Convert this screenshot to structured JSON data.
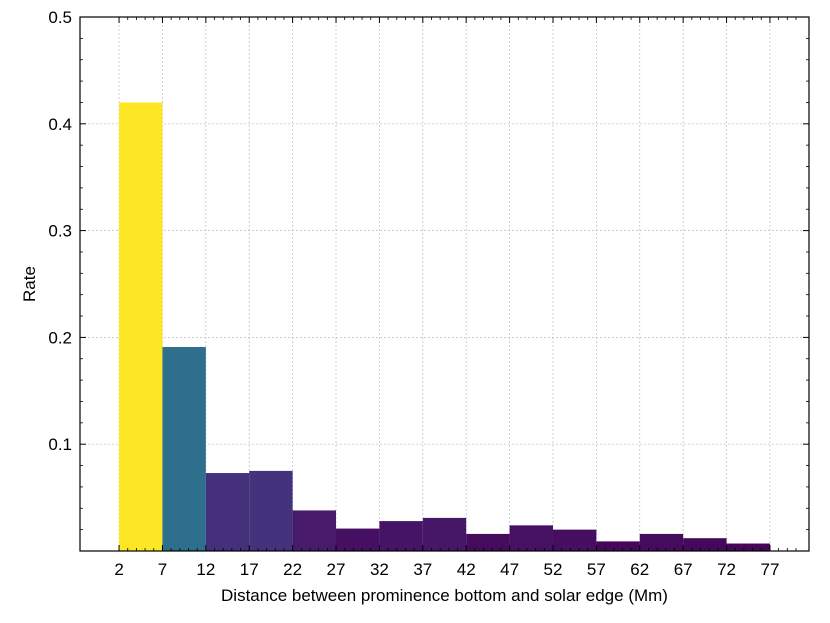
{
  "chart_data": {
    "type": "bar",
    "title": "",
    "xlabel": "Distance between prominence bottom and solar edge (Mm)",
    "ylabel": "Rate",
    "bin_edges": [
      2,
      7,
      12,
      17,
      22,
      27,
      32,
      37,
      42,
      47,
      52,
      57,
      62,
      67,
      72,
      77
    ],
    "values": [
      0.42,
      0.191,
      0.073,
      0.075,
      0.038,
      0.021,
      0.028,
      0.031,
      0.016,
      0.024,
      0.02,
      0.009,
      0.016,
      0.012,
      0.007
    ],
    "colormap": "viridis",
    "xlim": [
      -2.5,
      81.5
    ],
    "ylim": [
      0,
      0.5
    ],
    "xticks": [
      "2",
      "7",
      "12",
      "17",
      "22",
      "27",
      "32",
      "37",
      "42",
      "47",
      "52",
      "57",
      "62",
      "67",
      "72",
      "77"
    ],
    "yticks": [
      "0.1",
      "0.2",
      "0.3",
      "0.4",
      "0.5"
    ],
    "grid": true,
    "legend": "none"
  }
}
